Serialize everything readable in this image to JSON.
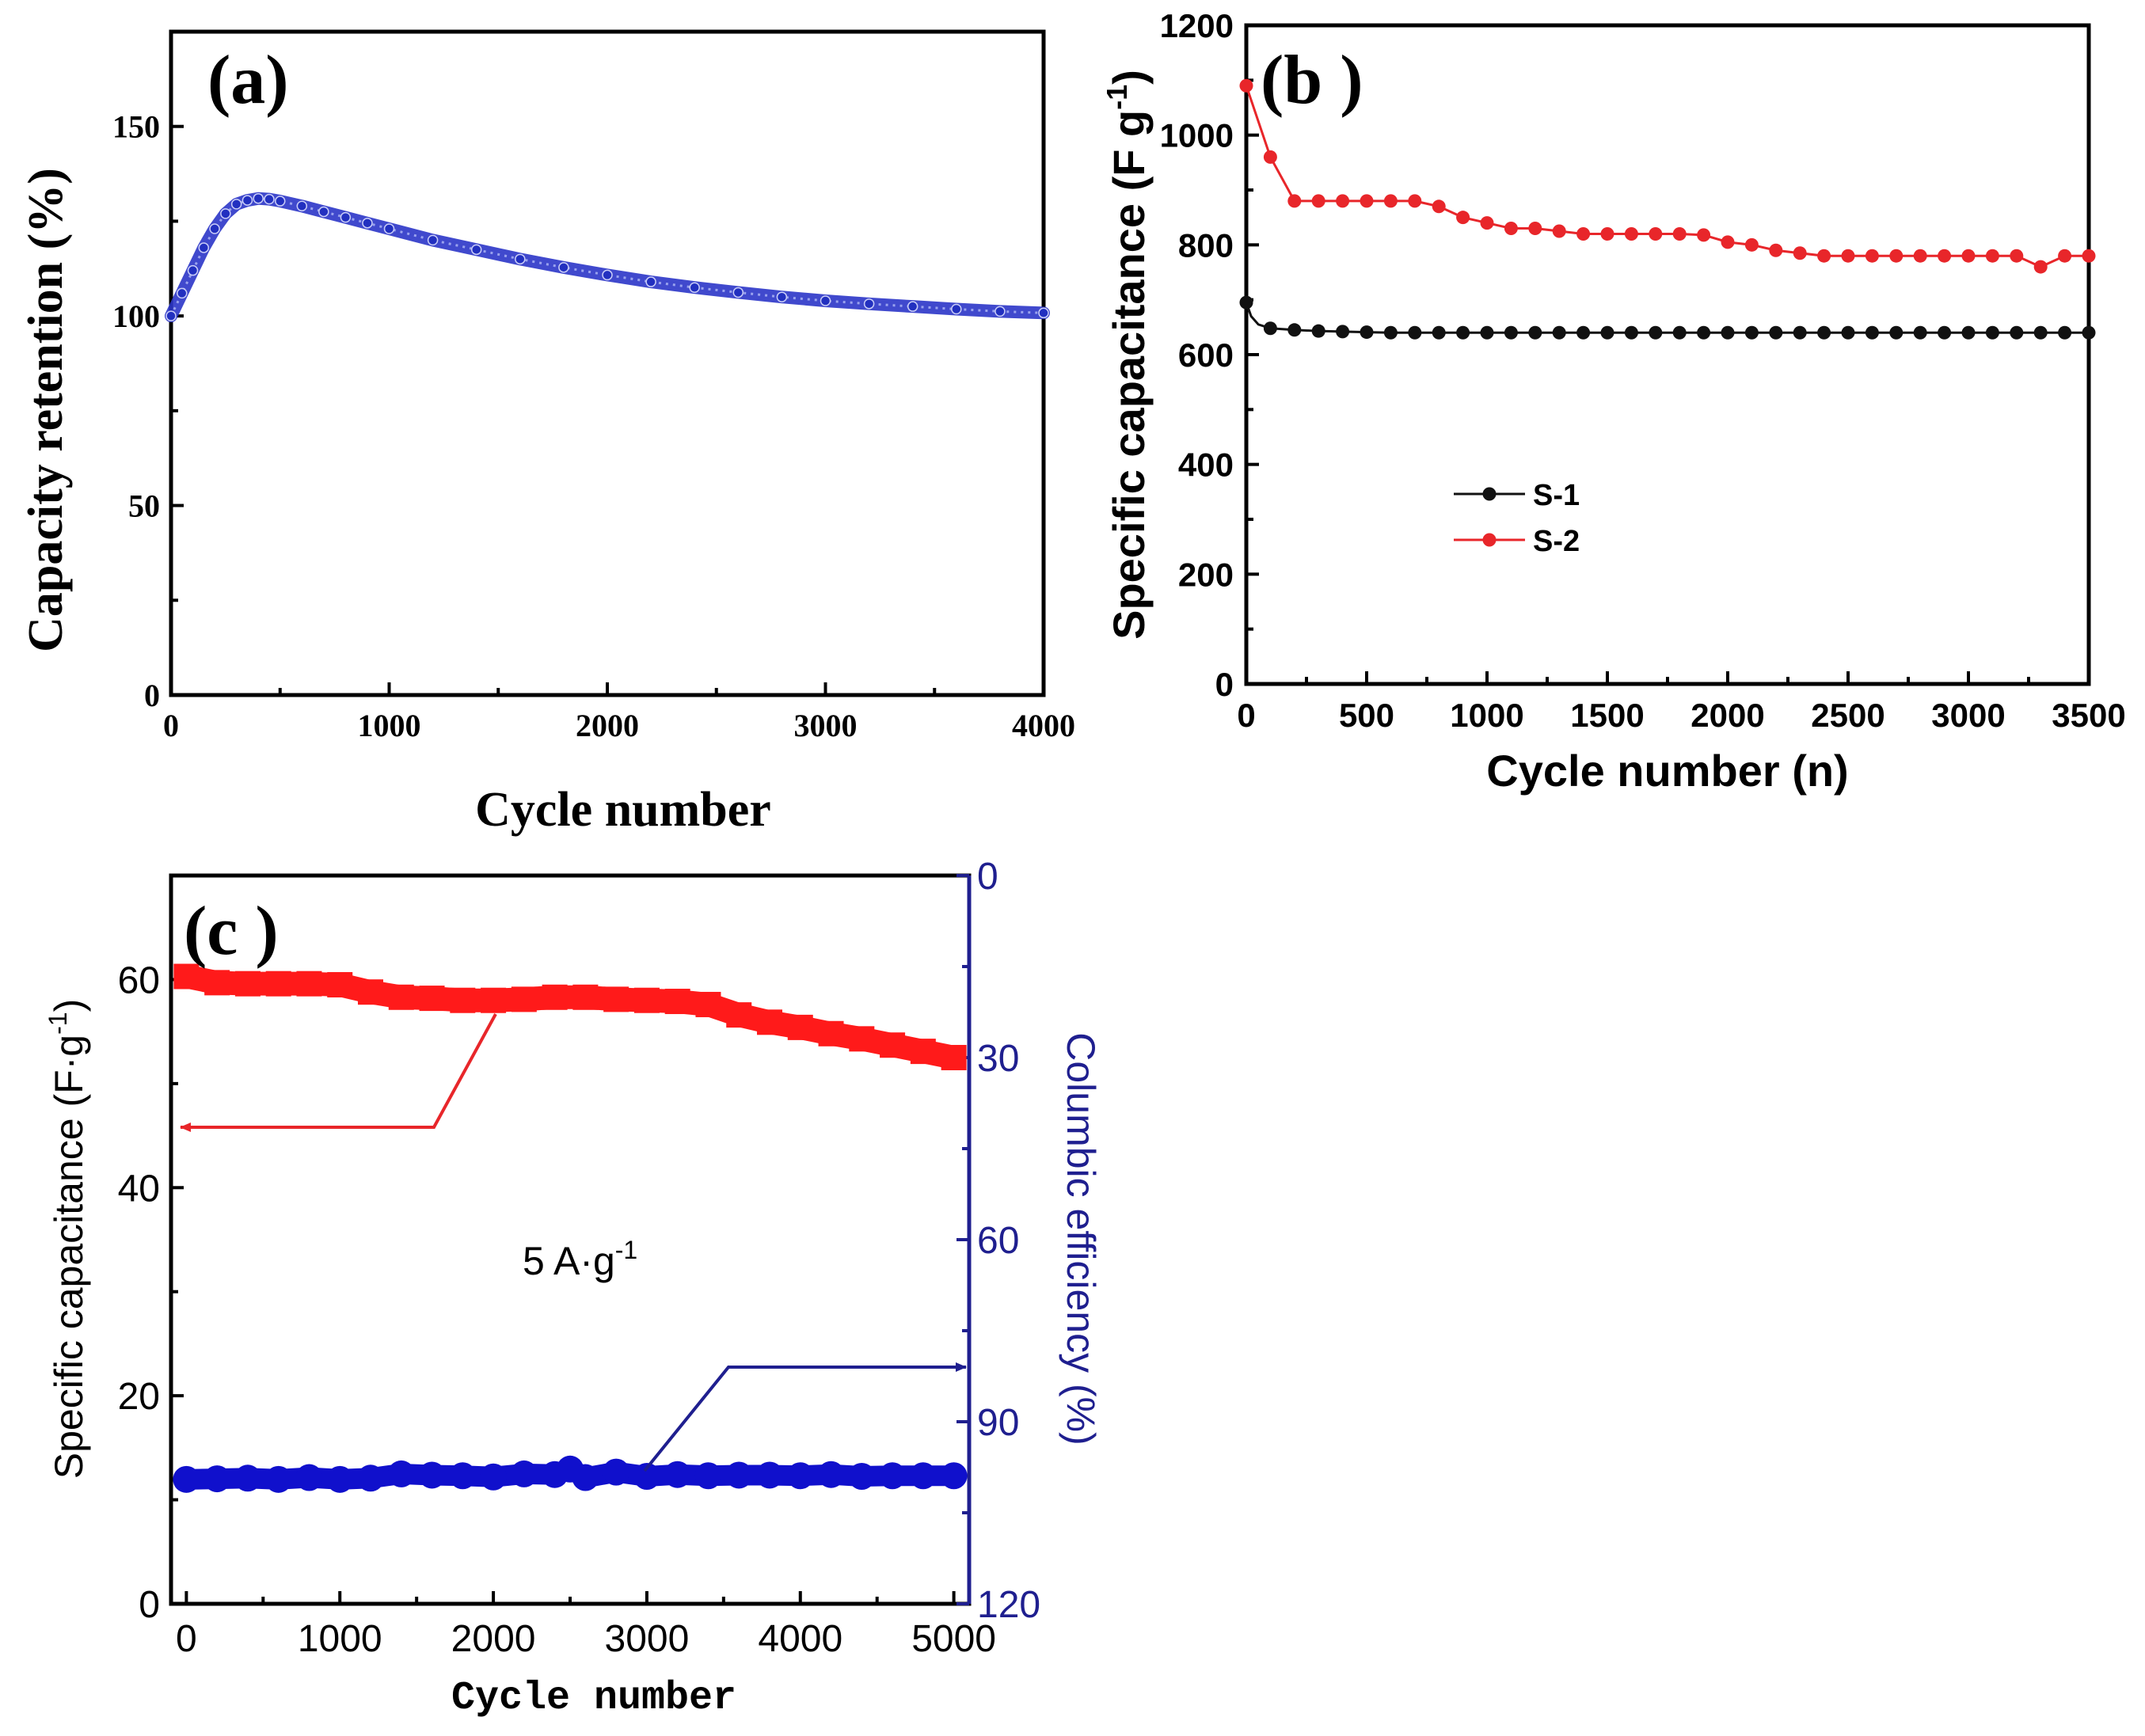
{
  "chart_data": [
    {
      "id": "a",
      "type": "line",
      "panel_label": "(a)",
      "xlabel": "Cycle number",
      "ylabel": "Capacity retention (%)",
      "xlim": [
        0,
        4000
      ],
      "ylim": [
        0,
        175
      ],
      "xticks": [
        0,
        1000,
        2000,
        3000,
        4000
      ],
      "yticks": [
        0,
        50,
        100,
        150
      ],
      "series": [
        {
          "name": "retention",
          "color": "#2b35c8",
          "x": [
            0,
            50,
            100,
            150,
            200,
            250,
            300,
            350,
            400,
            450,
            500,
            600,
            700,
            800,
            900,
            1000,
            1200,
            1400,
            1600,
            1800,
            2000,
            2200,
            2400,
            2600,
            2800,
            3000,
            3200,
            3400,
            3600,
            3800,
            4000
          ],
          "y": [
            100,
            106,
            112,
            118,
            123,
            127,
            129.5,
            130.5,
            131,
            130.8,
            130.3,
            129,
            127.5,
            126,
            124.5,
            123,
            120,
            117.5,
            115,
            112.8,
            110.8,
            109,
            107.5,
            106.2,
            105,
            104,
            103.2,
            102.5,
            101.8,
            101.2,
            100.8
          ]
        }
      ]
    },
    {
      "id": "b",
      "type": "line",
      "panel_label": "(b )",
      "xlabel": "Cycle number (n)",
      "ylabel": "Specific capacitance (F g",
      "ylabel_sup": "-1",
      "ylabel_end": ")",
      "xlim": [
        0,
        3500
      ],
      "ylim": [
        0,
        1200
      ],
      "xticks": [
        0,
        500,
        1000,
        1500,
        2000,
        2500,
        3000,
        3500
      ],
      "yticks": [
        0,
        200,
        400,
        600,
        800,
        1000,
        1200
      ],
      "legend_position": "center-left",
      "series": [
        {
          "name": "S-1",
          "color": "#111111",
          "x": [
            0,
            20,
            50,
            100,
            200,
            300,
            400,
            500,
            600,
            700,
            800,
            900,
            1000,
            1100,
            1200,
            1300,
            1400,
            1500,
            1600,
            1700,
            1800,
            1900,
            2000,
            2100,
            2200,
            2300,
            2400,
            2500,
            2600,
            2700,
            2800,
            2900,
            3000,
            3100,
            3200,
            3300,
            3400,
            3500
          ],
          "y": [
            695,
            670,
            655,
            648,
            645,
            643,
            642,
            641,
            640,
            640,
            640,
            640,
            640,
            640,
            640,
            640,
            640,
            640,
            640,
            640,
            640,
            640,
            640,
            640,
            640,
            640,
            640,
            640,
            640,
            640,
            640,
            640,
            640,
            640,
            640,
            640,
            640,
            640
          ]
        },
        {
          "name": "S-2",
          "color": "#e8262a",
          "x": [
            0,
            100,
            200,
            300,
            400,
            500,
            600,
            700,
            800,
            900,
            1000,
            1100,
            1200,
            1300,
            1400,
            1500,
            1600,
            1700,
            1800,
            1900,
            2000,
            2100,
            2200,
            2300,
            2400,
            2500,
            2600,
            2700,
            2800,
            2900,
            3000,
            3100,
            3200,
            3300,
            3400,
            3500
          ],
          "y": [
            1090,
            960,
            880,
            880,
            880,
            880,
            880,
            880,
            870,
            850,
            840,
            830,
            830,
            825,
            820,
            820,
            820,
            820,
            820,
            818,
            805,
            800,
            790,
            785,
            780,
            780,
            780,
            780,
            780,
            780,
            780,
            780,
            780,
            760,
            780,
            780
          ]
        }
      ]
    },
    {
      "id": "c",
      "type": "scatter",
      "panel_label": "(c )",
      "xlabel": "Cycle number",
      "ylabel": "Specific capacitance (F·g",
      "ylabel_sup": "-1",
      "ylabel_end": ")",
      "y2label": "Columbic efficiency (%)",
      "annotation": "5 A·g",
      "annotation_sup": "-1",
      "xlim": [
        -100,
        5100
      ],
      "ylim": [
        0,
        70
      ],
      "y2lim": [
        0,
        120
      ],
      "y2_inverted": true,
      "xticks": [
        0,
        1000,
        2000,
        3000,
        4000,
        5000
      ],
      "yticks": [
        0,
        20,
        40,
        60
      ],
      "y2ticks": [
        0,
        30,
        60,
        90,
        120
      ],
      "series": [
        {
          "name": "Specific capacitance",
          "axis": "left",
          "color": "#ff1a1a",
          "x": [
            0,
            200,
            400,
            600,
            800,
            1000,
            1200,
            1400,
            1600,
            1800,
            2000,
            2200,
            2400,
            2600,
            2800,
            3000,
            3200,
            3400,
            3600,
            3800,
            4000,
            4200,
            4400,
            4600,
            4800,
            5000
          ],
          "y": [
            60.3,
            59.7,
            59.6,
            59.6,
            59.6,
            59.5,
            58.8,
            58.3,
            58.2,
            58.0,
            58.0,
            58.1,
            58.3,
            58.3,
            58.1,
            58.0,
            57.9,
            57.6,
            56.6,
            55.9,
            55.4,
            54.8,
            54.3,
            53.7,
            53.1,
            52.5
          ]
        },
        {
          "name": "Columbic efficiency",
          "axis": "right",
          "color": "#1010cc",
          "x": [
            0,
            200,
            400,
            600,
            800,
            1000,
            1200,
            1400,
            1600,
            1800,
            2000,
            2200,
            2400,
            2500,
            2600,
            2800,
            3000,
            3200,
            3400,
            3600,
            3800,
            4000,
            4200,
            4400,
            4600,
            4800,
            5000
          ],
          "y": [
            99.5,
            99.4,
            99.3,
            99.5,
            99.2,
            99.5,
            99.3,
            98.6,
            98.8,
            98.9,
            99.1,
            98.6,
            98.7,
            97.8,
            99.2,
            98.3,
            99.0,
            98.7,
            98.9,
            98.8,
            98.8,
            98.9,
            98.7,
            99.0,
            98.9,
            98.9,
            98.9
          ]
        }
      ]
    }
  ]
}
